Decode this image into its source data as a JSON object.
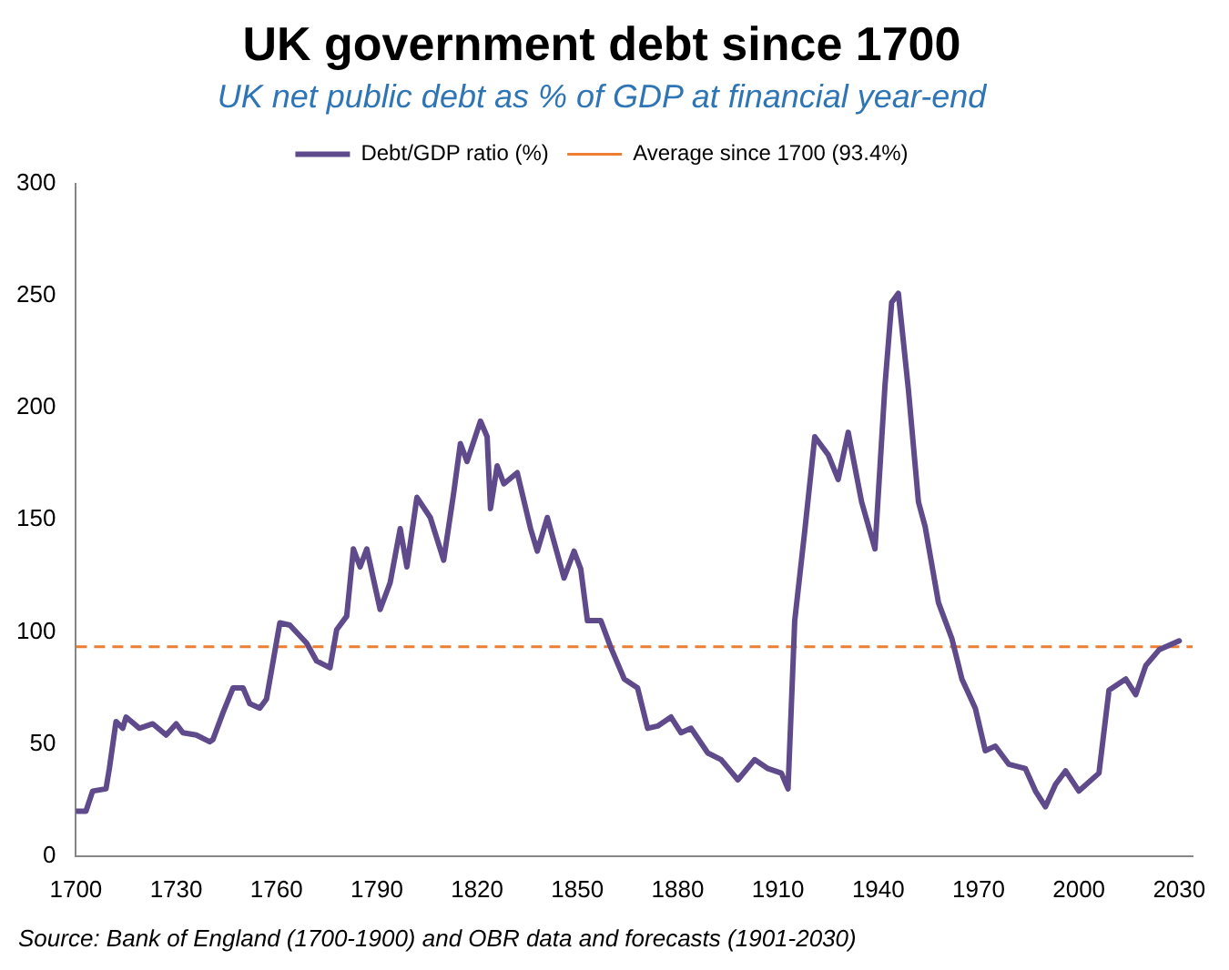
{
  "chart_data": {
    "type": "line",
    "title": "UK government debt since 1700",
    "subtitle": "UK net public debt as % of GDP at financial year-end",
    "x": [
      1700,
      1703,
      1705,
      1709,
      1710,
      1712,
      1714,
      1715,
      1719,
      1723,
      1727,
      1730,
      1732,
      1736,
      1740,
      1741,
      1744,
      1747,
      1750,
      1752,
      1755,
      1757,
      1761,
      1764,
      1769,
      1772,
      1776,
      1778,
      1781,
      1783,
      1785,
      1787,
      1791,
      1794,
      1797,
      1799,
      1802,
      1806,
      1810,
      1813,
      1815,
      1817,
      1821,
      1823,
      1824,
      1826,
      1828,
      1832,
      1836,
      1838,
      1841,
      1846,
      1849,
      1851,
      1853,
      1857,
      1860,
      1864,
      1868,
      1871,
      1874,
      1878,
      1881,
      1884,
      1889,
      1893,
      1898,
      1903,
      1907,
      1911,
      1913,
      1915,
      1918,
      1921,
      1925,
      1928,
      1931,
      1935,
      1939,
      1942,
      1944,
      1946,
      1949,
      1952,
      1954,
      1958,
      1962,
      1965,
      1969,
      1972,
      1975,
      1979,
      1984,
      1987,
      1990,
      1993,
      1996,
      2000,
      2006,
      2009,
      2014,
      2017,
      2020,
      2024,
      2030
    ],
    "series": [
      {
        "name": "Debt/GDP ratio (%)",
        "color": "#5f4b8b",
        "values": [
          20,
          20,
          29,
          30,
          39,
          60,
          57,
          62,
          57,
          59,
          54,
          59,
          55,
          54,
          51,
          52,
          64,
          75,
          75,
          68,
          66,
          70,
          104,
          103,
          95,
          87,
          84,
          101,
          107,
          137,
          129,
          137,
          110,
          122,
          146,
          129,
          160,
          151,
          132,
          162,
          184,
          176,
          194,
          187,
          155,
          174,
          166,
          171,
          146,
          136,
          151,
          124,
          136,
          128,
          105,
          105,
          93,
          79,
          75,
          57,
          58,
          62,
          55,
          57,
          46,
          43,
          34,
          43,
          39,
          37,
          30,
          105,
          145,
          187,
          179,
          168,
          189,
          158,
          137,
          210,
          247,
          251,
          208,
          158,
          147,
          113,
          97,
          79,
          66,
          47,
          49,
          41,
          39,
          29,
          22,
          32,
          38,
          29,
          37,
          74,
          79,
          72,
          85,
          92,
          96
        ]
      }
    ],
    "ref_lines": [
      {
        "axis": "y",
        "value": 93.4,
        "label": "Average since 1700 (93.4%)",
        "color": "#ed7d31",
        "line_style": "dashed"
      }
    ],
    "xlim": [
      1700,
      2034
    ],
    "xticks": [
      1700,
      1730,
      1760,
      1790,
      1820,
      1850,
      1880,
      1910,
      1940,
      1970,
      2000,
      2030
    ],
    "ylim": [
      0,
      300
    ],
    "yticks": [
      0,
      50,
      100,
      150,
      200,
      250,
      300
    ],
    "grid": false,
    "legend": "top",
    "marker": "none",
    "line_style": "solid",
    "annotations": [
      "Source:  Bank of England (1700-1900) and OBR data and forecasts (1901-2030)"
    ]
  }
}
